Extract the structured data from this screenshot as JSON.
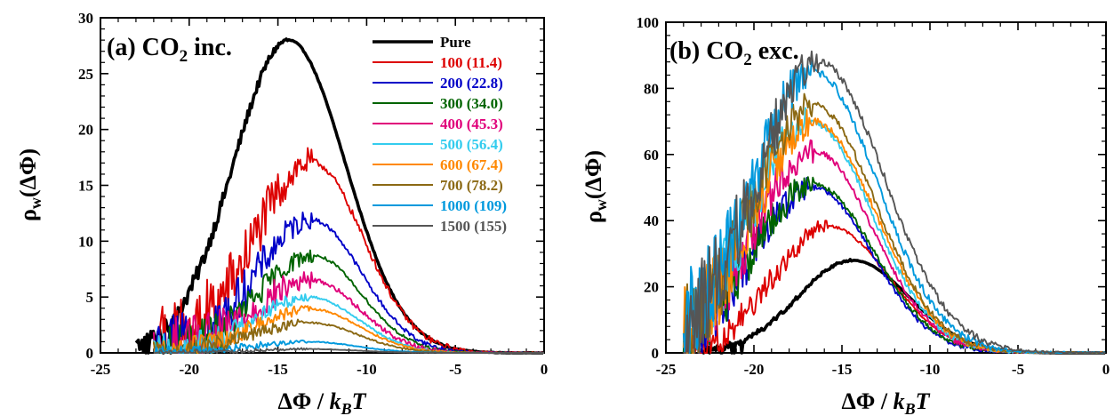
{
  "chart_data": [
    {
      "type": "line",
      "title": "(a) CO2 inc.",
      "title_parts": {
        "prefix": "(a) CO",
        "sub": "2",
        "suffix": " inc."
      },
      "xlabel": "ΔΦ / kBT",
      "xlabel_parts": {
        "main": "ΔΦ / ",
        "k": "k",
        "sub": "B",
        "T": "T"
      },
      "ylabel": "ρw(ΔΦ)",
      "ylabel_parts": {
        "rho": "ρ",
        "sub": "w",
        "rest": "(ΔΦ)"
      },
      "xlim": [
        -25,
        0
      ],
      "ylim": [
        0,
        30
      ],
      "xticks": [
        -25,
        -20,
        -15,
        -10,
        -5,
        0
      ],
      "xtick_labels": [
        "-25",
        "-20",
        "-15",
        "-10",
        "-5",
        "0"
      ],
      "yticks": [
        0,
        5,
        10,
        15,
        20,
        25,
        30
      ],
      "ytick_labels": [
        "0",
        "5",
        "10",
        "15",
        "20",
        "25",
        "30"
      ],
      "grid": false,
      "legend_position": "top-right",
      "series": [
        {
          "name": "Pure",
          "label_main": "Pure",
          "label_paren": "",
          "color": "#000000",
          "peak": 28.0,
          "center": -14.4,
          "sigma_left": 3.1,
          "sigma_right": 3.2,
          "start": -23.0,
          "noise": 0.25
        },
        {
          "name": "100 (11.4)",
          "label_main": "100",
          "label_paren": "(11.4)",
          "color": "#dd0000",
          "peak": 17.1,
          "center": -13.1,
          "sigma_left": 3.2,
          "sigma_right": 2.9,
          "start": -22.0,
          "noise": 1.2
        },
        {
          "name": "200 (22.8)",
          "label_main": "200",
          "label_paren": "(22.8)",
          "color": "#0000c8",
          "peak": 11.9,
          "center": -13.1,
          "sigma_left": 3.1,
          "sigma_right": 2.8,
          "start": -22.0,
          "noise": 0.8
        },
        {
          "name": "300 (34.0)",
          "label_main": "300",
          "label_paren": "(34.0)",
          "color": "#006400",
          "peak": 8.7,
          "center": -13.0,
          "sigma_left": 3.1,
          "sigma_right": 2.7,
          "start": -22.0,
          "noise": 0.6
        },
        {
          "name": "400 (45.3)",
          "label_main": "400",
          "label_paren": "(45.3)",
          "color": "#e0007a",
          "peak": 6.5,
          "center": -13.1,
          "sigma_left": 3.2,
          "sigma_right": 2.7,
          "start": -22.0,
          "noise": 0.8
        },
        {
          "name": "500 (56.4)",
          "label_main": "500",
          "label_paren": "(56.4)",
          "color": "#33ccee",
          "peak": 5.0,
          "center": -13.2,
          "sigma_left": 3.2,
          "sigma_right": 2.7,
          "start": -22.0,
          "noise": 0.4
        },
        {
          "name": "600 (67.4)",
          "label_main": "600",
          "label_paren": "(67.4)",
          "color": "#ff8800",
          "peak": 3.9,
          "center": -13.1,
          "sigma_left": 3.2,
          "sigma_right": 2.7,
          "start": -22.0,
          "noise": 0.35
        },
        {
          "name": "700 (78.2)",
          "label_main": "700",
          "label_paren": "(78.2)",
          "color": "#8b6914",
          "peak": 2.7,
          "center": -13.2,
          "sigma_left": 3.2,
          "sigma_right": 2.7,
          "start": -22.0,
          "noise": 0.3
        },
        {
          "name": "1000 (109)",
          "label_main": "1000",
          "label_paren": "(109)",
          "color": "#0099dd",
          "peak": 1.0,
          "center": -13.3,
          "sigma_left": 3.2,
          "sigma_right": 2.7,
          "start": -22.0,
          "noise": 0.15
        },
        {
          "name": "1500 (155)",
          "label_main": "1500",
          "label_paren": "(155)",
          "color": "#555555",
          "peak": 0.35,
          "center": -13.3,
          "sigma_left": 3.2,
          "sigma_right": 2.7,
          "start": -22.0,
          "noise": 0.08
        }
      ]
    },
    {
      "type": "line",
      "title": "(b) CO2 exc.",
      "title_parts": {
        "prefix": "(b) CO",
        "sub": "2",
        "suffix": " exc."
      },
      "xlabel": "ΔΦ / kBT",
      "xlabel_parts": {
        "main": "ΔΦ / ",
        "k": "k",
        "sub": "B",
        "T": "T"
      },
      "ylabel": "ρw(ΔΦ)",
      "ylabel_parts": {
        "rho": "ρ",
        "sub": "w",
        "rest": "(ΔΦ)"
      },
      "xlim": [
        -25,
        0
      ],
      "ylim": [
        0,
        100
      ],
      "xticks": [
        -25,
        -20,
        -15,
        -10,
        -5,
        0
      ],
      "xtick_labels": [
        "-25",
        "-20",
        "-15",
        "-10",
        "-5",
        "0"
      ],
      "yticks": [
        0,
        20,
        40,
        60,
        80,
        100
      ],
      "ytick_labels": [
        "0",
        "20",
        "40",
        "60",
        "80",
        "100"
      ],
      "grid": false,
      "series": [
        {
          "color": "#000000",
          "peak": 28.0,
          "center": -14.4,
          "sigma_left": 3.1,
          "sigma_right": 3.2,
          "start": -23.0,
          "noise": 0.3
        },
        {
          "color": "#dd0000",
          "peak": 38.5,
          "center": -15.8,
          "sigma_left": 3.0,
          "sigma_right": 3.4,
          "start": -24.0,
          "noise": 2.0
        },
        {
          "color": "#0000c8",
          "peak": 50.0,
          "center": -16.6,
          "sigma_left": 3.4,
          "sigma_right": 3.3,
          "start": -24.0,
          "noise": 3.0
        },
        {
          "color": "#006400",
          "peak": 51.0,
          "center": -16.6,
          "sigma_left": 3.4,
          "sigma_right": 3.4,
          "start": -24.0,
          "noise": 3.0
        },
        {
          "color": "#e0007a",
          "peak": 61.0,
          "center": -16.6,
          "sigma_left": 3.4,
          "sigma_right": 3.4,
          "start": -24.0,
          "noise": 3.5
        },
        {
          "color": "#33ccee",
          "peak": 70.0,
          "center": -16.8,
          "sigma_left": 3.4,
          "sigma_right": 3.5,
          "start": -24.0,
          "noise": 4.0
        },
        {
          "color": "#ff8800",
          "peak": 70.0,
          "center": -16.6,
          "sigma_left": 3.4,
          "sigma_right": 3.5,
          "start": -24.0,
          "noise": 4.0
        },
        {
          "color": "#8b6914",
          "peak": 75.0,
          "center": -16.6,
          "sigma_left": 3.4,
          "sigma_right": 3.5,
          "start": -24.0,
          "noise": 4.0
        },
        {
          "color": "#0099dd",
          "peak": 85.0,
          "center": -16.6,
          "sigma_left": 3.5,
          "sigma_right": 3.6,
          "start": -24.0,
          "noise": 4.5
        },
        {
          "color": "#555555",
          "peak": 88.0,
          "center": -16.3,
          "sigma_left": 3.5,
          "sigma_right": 3.7,
          "start": -24.0,
          "noise": 4.5
        }
      ]
    }
  ]
}
